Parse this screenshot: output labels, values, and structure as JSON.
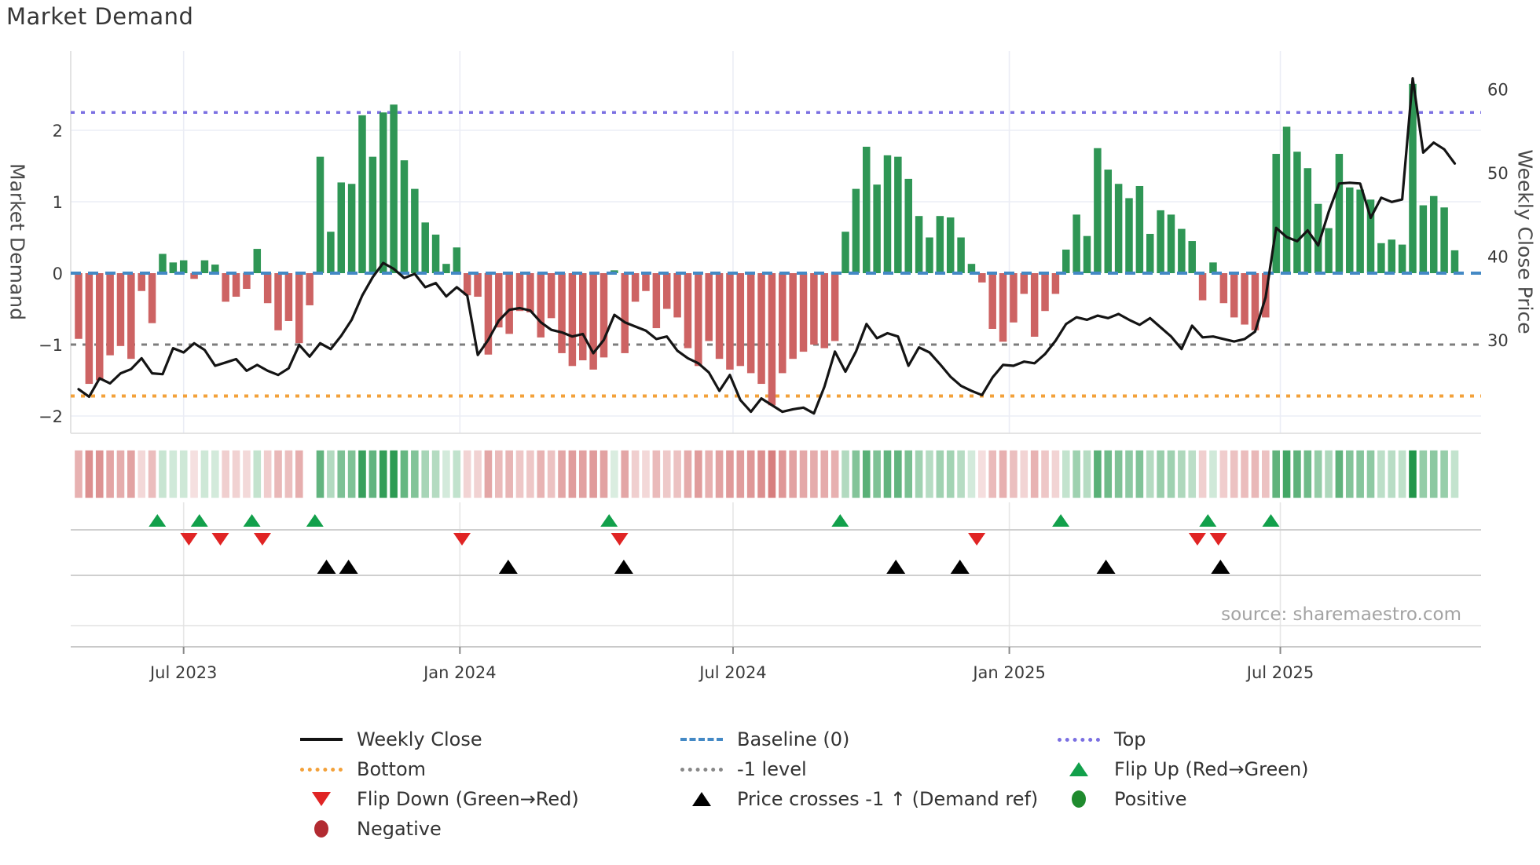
{
  "title": "Market Demand",
  "source": "source: sharemaestro.com",
  "axes": {
    "left_label": "Market Demand",
    "right_label": "Weekly Close Price",
    "left_tick_labels": [
      "2",
      "1",
      "0",
      "−1",
      "−2"
    ],
    "left_tick_values": [
      2,
      1,
      0,
      -1,
      -2
    ],
    "right_tick_labels": [
      "60",
      "50",
      "40",
      "30"
    ],
    "right_tick_values": [
      60,
      50,
      40,
      30
    ],
    "x_tick_labels": [
      "Jul 2023",
      "Jan 2024",
      "Jul 2024",
      "Jan 2025",
      "Jul 2025"
    ]
  },
  "chart_data": {
    "type": "bar+line",
    "title": "Market Demand",
    "ylabel_left": "Market Demand",
    "ylabel_right": "Weekly Close Price",
    "x_unit": "weeks",
    "x_tick_weeks": [
      10.0,
      36.3,
      62.3,
      88.6,
      114.4
    ],
    "ylim_left": [
      -2.37,
      2.68
    ],
    "ylim_right": [
      22,
      62
    ],
    "levels": {
      "baseline": 0,
      "top": 2.25,
      "bottom": -1.72,
      "minus_one": -1
    },
    "demand": [
      -0.92,
      -1.55,
      -1.5,
      -1.15,
      -1.02,
      -1.2,
      -0.25,
      -0.7,
      0.27,
      0.15,
      0.18,
      -0.08,
      0.18,
      0.12,
      -0.4,
      -0.33,
      -0.22,
      0.34,
      -0.42,
      -0.8,
      -0.67,
      -0.98,
      -0.45,
      1.63,
      0.58,
      1.27,
      1.25,
      2.21,
      1.63,
      2.25,
      2.36,
      1.58,
      1.18,
      0.71,
      0.54,
      0.13,
      0.36,
      -0.31,
      -0.33,
      -1.14,
      -0.76,
      -0.85,
      -0.53,
      -0.55,
      -0.9,
      -0.63,
      -1.12,
      -1.3,
      -1.22,
      -1.35,
      -1.18,
      0.04,
      -1.12,
      -0.4,
      -0.25,
      -0.77,
      -0.5,
      -0.62,
      -1.05,
      -1.3,
      -0.95,
      -1.2,
      -1.35,
      -1.3,
      -1.4,
      -1.55,
      -1.85,
      -1.4,
      -1.2,
      -1.1,
      -1.0,
      -1.05,
      -0.95,
      0.58,
      1.18,
      1.77,
      1.24,
      1.65,
      1.63,
      1.32,
      0.8,
      0.5,
      0.8,
      0.78,
      0.5,
      0.13,
      -0.13,
      -0.78,
      -0.96,
      -0.69,
      -0.29,
      -0.89,
      -0.53,
      -0.29,
      0.33,
      0.82,
      0.52,
      1.75,
      1.45,
      1.25,
      1.05,
      1.22,
      0.55,
      0.88,
      0.82,
      0.62,
      0.45,
      -0.38,
      0.15,
      -0.42,
      -0.62,
      -0.72,
      -0.8,
      -0.62,
      1.67,
      2.05,
      1.7,
      1.47,
      0.97,
      0.63,
      1.67,
      1.2,
      1.17,
      1.03,
      0.42,
      0.47,
      0.4,
      2.65,
      0.95,
      1.08,
      0.92,
      0.32
    ],
    "price": [
      24.1,
      23.2,
      25.4,
      24.8,
      26.0,
      26.5,
      27.8,
      26.0,
      25.9,
      29.0,
      28.5,
      29.6,
      28.8,
      26.9,
      27.3,
      27.7,
      26.3,
      27.0,
      26.3,
      25.8,
      26.6,
      29.4,
      28.0,
      29.6,
      28.9,
      30.5,
      32.4,
      35.3,
      37.5,
      39.2,
      38.5,
      37.4,
      37.9,
      36.3,
      36.8,
      35.2,
      36.3,
      35.3,
      28.2,
      30.0,
      32.3,
      33.6,
      33.8,
      33.5,
      32.1,
      31.2,
      30.9,
      30.4,
      30.7,
      28.4,
      30.0,
      33.0,
      32.1,
      31.6,
      31.1,
      30.1,
      30.4,
      28.7,
      27.8,
      27.2,
      26.1,
      23.9,
      25.8,
      22.8,
      21.4,
      23.0,
      22.2,
      21.4,
      21.7,
      21.9,
      21.2,
      24.4,
      28.6,
      26.2,
      28.6,
      31.9,
      30.2,
      30.8,
      30.4,
      26.9,
      29.1,
      28.5,
      27.1,
      25.6,
      24.5,
      23.9,
      23.4,
      25.5,
      27.0,
      26.9,
      27.4,
      27.2,
      28.3,
      29.9,
      31.9,
      32.7,
      32.4,
      32.9,
      32.6,
      33.1,
      32.4,
      31.8,
      32.6,
      31.5,
      30.4,
      28.9,
      31.7,
      30.3,
      30.4,
      30.1,
      29.8,
      30.1,
      31.0,
      35.1,
      43.4,
      42.3,
      41.8,
      43.1,
      41.3,
      45.3,
      48.7,
      48.8,
      48.7,
      44.6,
      47.0,
      46.5,
      46.8,
      61.3,
      52.4,
      53.6,
      52.8,
      51.1
    ],
    "price_cross_weeks": [
      23.6,
      25.7,
      40.9,
      51.9,
      77.8,
      83.9,
      97.8,
      108.7
    ],
    "heatmap_gap_weeks": [
      22
    ],
    "legend_position": "bottom",
    "grid": true
  },
  "legend": {
    "items": [
      {
        "col": 0,
        "row": 0,
        "key": "weekly-close",
        "swatch": "line",
        "color": "#141414",
        "label": "Weekly Close"
      },
      {
        "col": 0,
        "row": 1,
        "key": "bottom",
        "swatch": "dot",
        "color": "#f3a13a",
        "label": "Bottom"
      },
      {
        "col": 0,
        "row": 2,
        "key": "flip-down",
        "swatch": "tri-dn",
        "color": "#e02424",
        "label": "Flip Down (Green→Red)"
      },
      {
        "col": 0,
        "row": 3,
        "key": "negative",
        "swatch": "circle",
        "color": "#b22b31",
        "label": "Negative"
      },
      {
        "col": 1,
        "row": 0,
        "key": "baseline",
        "swatch": "dash",
        "color": "#4489c5",
        "label": "Baseline (0)"
      },
      {
        "col": 1,
        "row": 1,
        "key": "minus-one-level",
        "swatch": "dot",
        "color": "#888888",
        "label": "-1 level"
      },
      {
        "col": 1,
        "row": 2,
        "key": "price-cross",
        "swatch": "tri-up",
        "color": "#000000",
        "label": "Price crosses -1 ↑ (Demand ref)"
      },
      {
        "col": 2,
        "row": 0,
        "key": "top",
        "swatch": "dot",
        "color": "#7b70e2",
        "label": "Top"
      },
      {
        "col": 2,
        "row": 1,
        "key": "flip-up",
        "swatch": "tri-up",
        "color": "#12a04b",
        "label": "Flip Up (Red→Green)"
      },
      {
        "col": 2,
        "row": 2,
        "key": "positive",
        "swatch": "circle",
        "color": "#1f8b2e",
        "label": "Positive"
      }
    ]
  },
  "colors": {
    "bar_positive": "#2f9655",
    "bar_negative": "#cd6363",
    "price_line": "#141414",
    "baseline": "#4489c5",
    "top_line": "#7b70e2",
    "bottom_line": "#f3a13a",
    "minus_one_line": "#7d7d7d",
    "flip_up": "#12a04b",
    "flip_down": "#e02424",
    "price_cross": "#000000",
    "grid": "#ebedf5",
    "separator": "#cccccc",
    "axis_line": "#bfbfbf",
    "tick_text": "#3b3b3b",
    "source_text": "#a3a3a3"
  }
}
